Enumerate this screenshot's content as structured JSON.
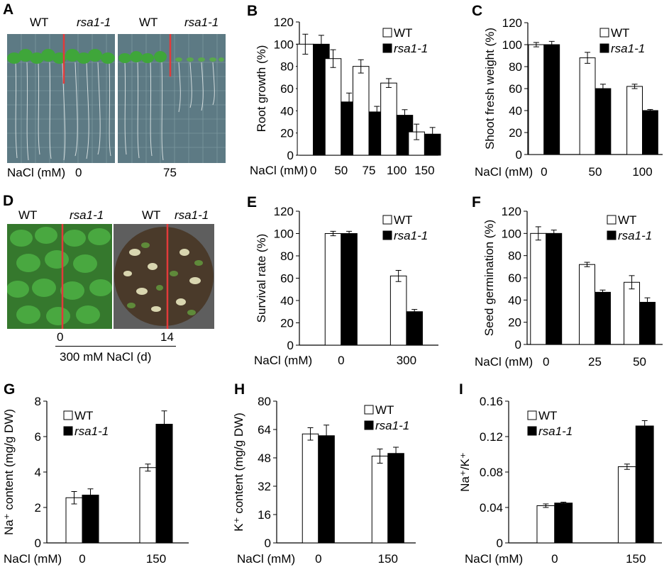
{
  "photos": {
    "A": {
      "letter": "A",
      "labels": [
        "WT",
        "rsa1-1",
        "WT",
        "rsa1-1"
      ],
      "xtitle": "NaCl (mM)",
      "conditions": [
        "0",
        "75"
      ],
      "colors": {
        "plate": "#5d7a84",
        "leaf": "#3fa63a",
        "divider": "#e23a3a",
        "grid": "#8aa4ab"
      }
    },
    "D": {
      "letter": "D",
      "labels": [
        "WT",
        "rsa1-1",
        "WT",
        "rsa1-1"
      ],
      "days": [
        "0",
        "14"
      ],
      "xtitle": "300 mM NaCl (d)",
      "colors": {
        "leaf": "#3a9a35",
        "soil": "#4a3a2a",
        "pot": "#6e6e6e",
        "divider": "#e23a3a"
      }
    }
  },
  "legend": {
    "wt": "WT",
    "mut": "rsa1-1"
  },
  "chart_data": [
    {
      "id": "B",
      "letter": "B",
      "type": "bar",
      "ylabel": "Root growth (%)",
      "xtitle": "NaCl (mM)",
      "categories": [
        "0",
        "50",
        "75",
        "100",
        "150"
      ],
      "series": [
        {
          "name": "WT",
          "values": [
            100,
            87,
            80,
            65,
            21
          ],
          "errors": [
            9,
            8,
            6,
            4,
            7
          ]
        },
        {
          "name": "rsa1-1",
          "values": [
            100,
            48,
            39,
            36,
            19
          ],
          "errors": [
            8,
            8,
            5,
            5,
            6
          ]
        }
      ],
      "ylim": [
        0,
        120
      ],
      "yticks": [
        "0",
        "20",
        "40",
        "60",
        "80",
        "100",
        "120"
      ]
    },
    {
      "id": "C",
      "letter": "C",
      "type": "bar",
      "ylabel": "Shoot fresh weight (%)",
      "xtitle": "NaCl (mM)",
      "categories": [
        "0",
        "50",
        "100"
      ],
      "series": [
        {
          "name": "WT",
          "values": [
            100,
            88,
            62
          ],
          "errors": [
            2,
            5,
            2
          ]
        },
        {
          "name": "rsa1-1",
          "values": [
            100,
            60,
            40
          ],
          "errors": [
            3,
            4,
            1
          ]
        }
      ],
      "ylim": [
        0,
        120
      ],
      "yticks": [
        "0",
        "20",
        "40",
        "60",
        "80",
        "100",
        "120"
      ]
    },
    {
      "id": "E",
      "letter": "E",
      "type": "bar",
      "ylabel": "Survival rate (%)",
      "xtitle": "NaCl (mM)",
      "categories": [
        "0",
        "300"
      ],
      "series": [
        {
          "name": "WT",
          "values": [
            100,
            62
          ],
          "errors": [
            2,
            5
          ]
        },
        {
          "name": "rsa1-1",
          "values": [
            100,
            30
          ],
          "errors": [
            2,
            2
          ]
        }
      ],
      "ylim": [
        0,
        120
      ],
      "yticks": [
        "0",
        "20",
        "40",
        "60",
        "80",
        "100",
        "120"
      ]
    },
    {
      "id": "F",
      "letter": "F",
      "type": "bar",
      "ylabel": "Seed germination (%)",
      "xtitle": "NaCl (mM)",
      "categories": [
        "0",
        "25",
        "50"
      ],
      "series": [
        {
          "name": "WT",
          "values": [
            100,
            72,
            56
          ],
          "errors": [
            6,
            2,
            6
          ]
        },
        {
          "name": "rsa1-1",
          "values": [
            100,
            47,
            38
          ],
          "errors": [
            3,
            2,
            4
          ]
        }
      ],
      "ylim": [
        0,
        120
      ],
      "yticks": [
        "0",
        "20",
        "40",
        "60",
        "80",
        "100",
        "120"
      ]
    },
    {
      "id": "G",
      "letter": "G",
      "type": "bar",
      "ylabel": "Na⁺ content (mg/g DW)",
      "xtitle": "NaCl (mM)",
      "categories": [
        "0",
        "150"
      ],
      "series": [
        {
          "name": "WT",
          "values": [
            2.55,
            4.25
          ],
          "errors": [
            0.35,
            0.2
          ]
        },
        {
          "name": "rsa1-1",
          "values": [
            2.7,
            6.7
          ],
          "errors": [
            0.35,
            0.75
          ]
        }
      ],
      "ylim": [
        0,
        8
      ],
      "yticks": [
        "0",
        "2",
        "4",
        "6",
        "8"
      ]
    },
    {
      "id": "H",
      "letter": "H",
      "type": "bar",
      "ylabel": "K⁺ content (mg/g DW)",
      "xtitle": "NaCl (mM)",
      "categories": [
        "0",
        "150"
      ],
      "series": [
        {
          "name": "WT",
          "values": [
            61.5,
            49
          ],
          "errors": [
            3.5,
            4
          ]
        },
        {
          "name": "rsa1-1",
          "values": [
            60.5,
            50.5
          ],
          "errors": [
            6,
            3.5
          ]
        }
      ],
      "ylim": [
        0,
        80
      ],
      "yticks": [
        "0",
        "16",
        "32",
        "48",
        "64",
        "80"
      ]
    },
    {
      "id": "I",
      "letter": "I",
      "type": "bar",
      "ylabel": "Na⁺/K⁺",
      "xtitle": "NaCl (mM)",
      "categories": [
        "0",
        "150"
      ],
      "series": [
        {
          "name": "WT",
          "values": [
            0.042,
            0.086
          ],
          "errors": [
            0.002,
            0.003
          ]
        },
        {
          "name": "rsa1-1",
          "values": [
            0.045,
            0.132
          ],
          "errors": [
            0.001,
            0.006
          ]
        }
      ],
      "ylim": [
        0,
        0.16
      ],
      "yticks": [
        "0",
        "0.04",
        "0.08",
        "0.12",
        "0.16"
      ]
    }
  ]
}
